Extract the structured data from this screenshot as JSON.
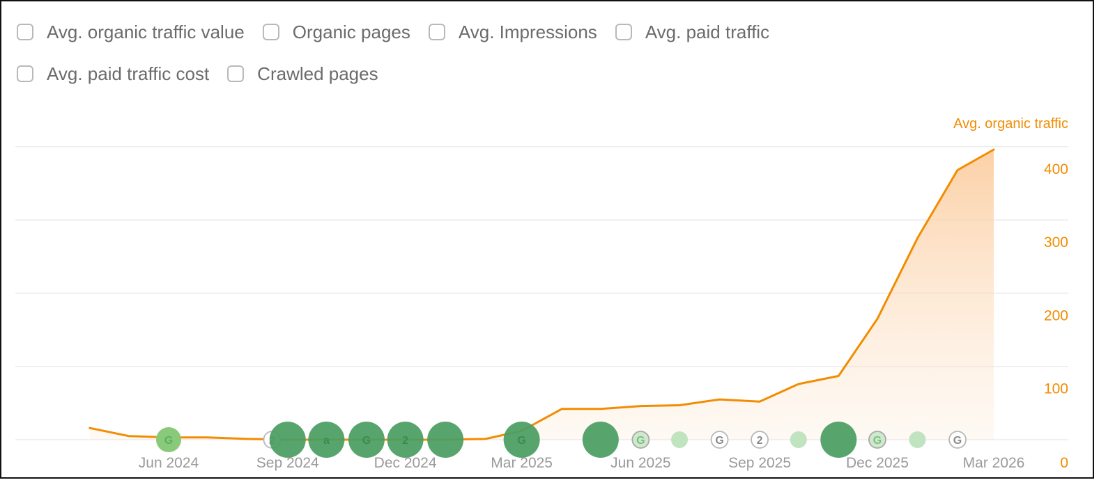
{
  "toggles": [
    [
      {
        "label": "Avg. organic traffic value",
        "checked": false
      },
      {
        "label": "Organic pages",
        "checked": false
      },
      {
        "label": "Avg. Impressions",
        "checked": false
      },
      {
        "label": "Avg. paid traffic",
        "checked": false
      }
    ],
    [
      {
        "label": "Avg. paid traffic cost",
        "checked": false
      },
      {
        "label": "Crawled pages",
        "checked": false
      }
    ]
  ],
  "chart_data": {
    "type": "area",
    "title": "",
    "ylabel": "Avg. organic traffic",
    "ylim": [
      0,
      400
    ],
    "yticks": [
      0,
      100,
      200,
      300,
      400
    ],
    "grid": true,
    "colors": {
      "line": "#f28c00",
      "area": "#fcd9b8",
      "grid": "#ececec",
      "xtick": "#9a9a9a"
    },
    "x_ticks": [
      {
        "label": "Jun 2024",
        "x": "2024-06-01"
      },
      {
        "label": "Sep 2024",
        "x": "2024-09-01"
      },
      {
        "label": "Dec 2024",
        "x": "2024-12-01"
      },
      {
        "label": "Mar 2025",
        "x": "2025-03-01"
      },
      {
        "label": "Jun 2025",
        "x": "2025-06-01"
      },
      {
        "label": "Sep 2025",
        "x": "2025-09-01"
      },
      {
        "label": "Dec 2025",
        "x": "2025-12-01"
      },
      {
        "label": "Mar 2026",
        "x": "2026-03-01"
      }
    ],
    "series": [
      {
        "points": [
          {
            "x": "2024-04-01",
            "y": 16
          },
          {
            "x": "2024-05-01",
            "y": 5
          },
          {
            "x": "2024-06-01",
            "y": 3
          },
          {
            "x": "2024-07-01",
            "y": 3
          },
          {
            "x": "2024-08-01",
            "y": 1
          },
          {
            "x": "2024-09-01",
            "y": 0
          },
          {
            "x": "2024-10-01",
            "y": 0
          },
          {
            "x": "2024-11-01",
            "y": 0
          },
          {
            "x": "2024-12-01",
            "y": 0
          },
          {
            "x": "2025-01-01",
            "y": 0
          },
          {
            "x": "2025-02-01",
            "y": 1
          },
          {
            "x": "2025-03-01",
            "y": 12
          },
          {
            "x": "2025-04-01",
            "y": 42
          },
          {
            "x": "2025-05-01",
            "y": 42
          },
          {
            "x": "2025-06-01",
            "y": 46
          },
          {
            "x": "2025-07-01",
            "y": 47
          },
          {
            "x": "2025-08-01",
            "y": 55
          },
          {
            "x": "2025-09-01",
            "y": 52
          },
          {
            "x": "2025-10-01",
            "y": 76
          },
          {
            "x": "2025-11-01",
            "y": 87
          },
          {
            "x": "2025-12-01",
            "y": 165
          },
          {
            "x": "2026-01-01",
            "y": 275
          },
          {
            "x": "2026-02-01",
            "y": 368
          },
          {
            "x": "2026-03-01",
            "y": 396
          }
        ]
      }
    ],
    "annotations": [
      {
        "x": "2024-06-01",
        "glyph": "G",
        "kind": "light-filled",
        "size": "small"
      },
      {
        "x": "2024-08-20",
        "glyph": "2",
        "kind": "outline",
        "size": "small"
      },
      {
        "x": "2024-09-01",
        "glyph": "",
        "kind": "dark",
        "size": "large"
      },
      {
        "x": "2024-10-01",
        "glyph": "a",
        "kind": "dark",
        "size": "large"
      },
      {
        "x": "2024-11-01",
        "glyph": "G",
        "kind": "dark",
        "size": "large"
      },
      {
        "x": "2024-12-01",
        "glyph": "2",
        "kind": "dark",
        "size": "large"
      },
      {
        "x": "2025-01-01",
        "glyph": "",
        "kind": "dark",
        "size": "large"
      },
      {
        "x": "2025-03-01",
        "glyph": "G",
        "kind": "dark",
        "size": "large"
      },
      {
        "x": "2025-05-01",
        "glyph": "",
        "kind": "dark",
        "size": "large"
      },
      {
        "x": "2025-06-01",
        "glyph": "G",
        "kind": "light-outline",
        "size": "small"
      },
      {
        "x": "2025-07-01",
        "glyph": "",
        "kind": "light",
        "size": "small"
      },
      {
        "x": "2025-08-01",
        "glyph": "G",
        "kind": "outline",
        "size": "small"
      },
      {
        "x": "2025-09-01",
        "glyph": "2",
        "kind": "outline",
        "size": "small"
      },
      {
        "x": "2025-10-01",
        "glyph": "",
        "kind": "light",
        "size": "small"
      },
      {
        "x": "2025-11-01",
        "glyph": "",
        "kind": "dark",
        "size": "large"
      },
      {
        "x": "2025-12-01",
        "glyph": "G",
        "kind": "light-outline",
        "size": "small"
      },
      {
        "x": "2026-01-01",
        "glyph": "",
        "kind": "light",
        "size": "small"
      },
      {
        "x": "2026-02-01",
        "glyph": "G",
        "kind": "outline",
        "size": "small"
      }
    ]
  }
}
